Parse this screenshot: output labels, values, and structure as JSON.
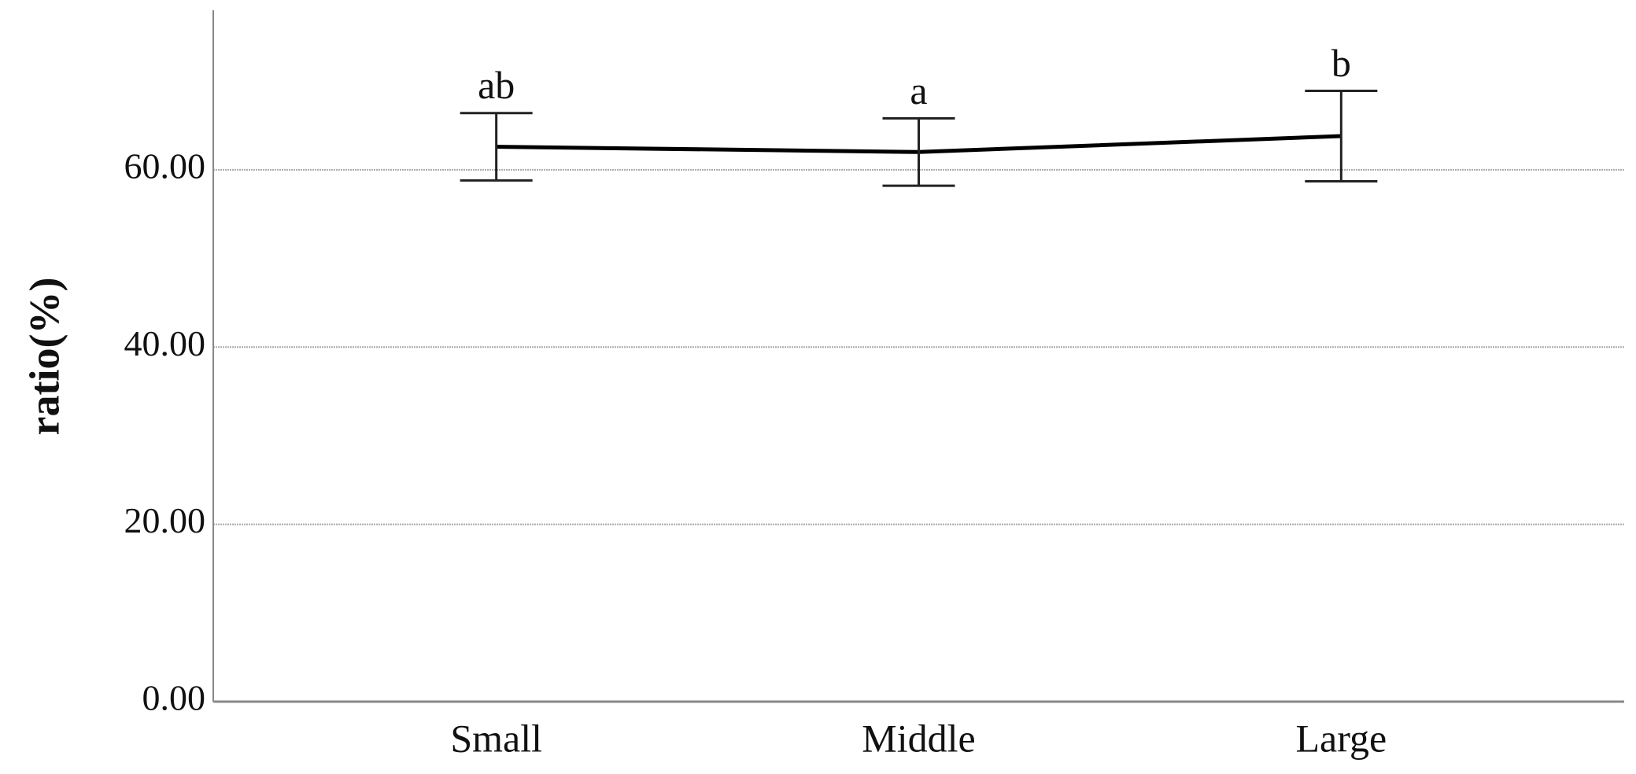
{
  "chart_data": {
    "type": "line",
    "y_label": "ratio(%)",
    "categories": [
      "Small",
      "Middle",
      "Large"
    ],
    "values": [
      62.6,
      62.0,
      63.8
    ],
    "errors": [
      3.8,
      3.8,
      5.1
    ],
    "annotations": [
      "ab",
      "a",
      "b"
    ],
    "color": "#000000",
    "ylim": [
      0,
      78
    ],
    "yticks": [
      {
        "value": 0,
        "label": "0.00"
      },
      {
        "value": 20,
        "label": "20.00"
      },
      {
        "value": 40,
        "label": "40.00"
      },
      {
        "value": 60,
        "label": "60.00"
      }
    ],
    "grid": true
  }
}
